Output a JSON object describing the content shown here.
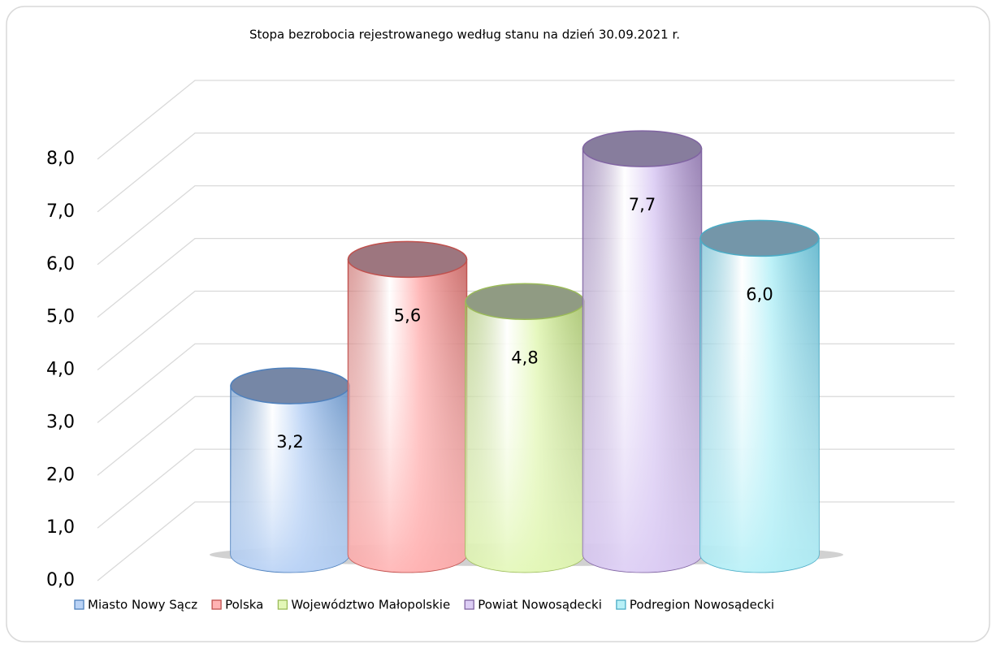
{
  "chart_data": {
    "type": "cylinder",
    "title": "Stopa bezrobocia rejestrowanego według stanu na dzień 30.09.2021 r.",
    "categories": [
      "Miasto Nowy Sącz",
      "Polska",
      "Województwo Małopolskie",
      "Powiat Nowosądecki",
      "Podregion Nowosądecki"
    ],
    "values": [
      3.2,
      5.6,
      4.8,
      7.7,
      6.0
    ],
    "value_labels": [
      "3,2",
      "5,6",
      "4,8",
      "7,7",
      "6,0"
    ],
    "colors": [
      "#b9d2f5",
      "#ffb3b3",
      "#e3f7b8",
      "#dccdf4",
      "#b8f0f7"
    ],
    "edge_colors": [
      "#4f81bd",
      "#c0504d",
      "#9bbb59",
      "#8064a2",
      "#4bacc6"
    ],
    "ylim": [
      0,
      8
    ],
    "yticks": [
      {
        "value": 0,
        "label": "0,0"
      },
      {
        "value": 1,
        "label": "1,0"
      },
      {
        "value": 2,
        "label": "2,0"
      },
      {
        "value": 3,
        "label": "3,0"
      },
      {
        "value": 4,
        "label": "4,0"
      },
      {
        "value": 5,
        "label": "5,0"
      },
      {
        "value": 6,
        "label": "6,0"
      },
      {
        "value": 7,
        "label": "7,0"
      },
      {
        "value": 8,
        "label": "8,0"
      }
    ],
    "grid": true,
    "legend": "bottom"
  }
}
